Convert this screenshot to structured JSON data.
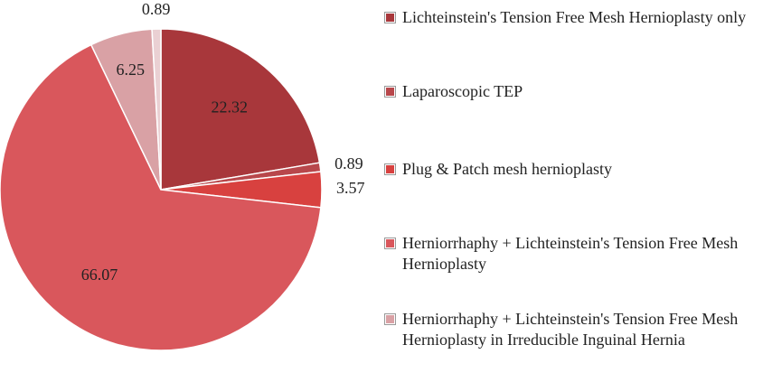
{
  "chart_data": {
    "type": "pie",
    "categories": [
      "Lichteinstein's Tension Free Mesh Hernioplasty only",
      "Laparoscopic TEP",
      "Plug & Patch mesh hernioplasty",
      "Herniorrhaphy + Lichteinstein's Tension Free Mesh Hernioplasty",
      "Herniorrhaphy + Lichteinstein's Tension Free Mesh Hernioplasty in Irreducible Inguinal Hernia",
      null
    ],
    "values": [
      22.32,
      0.89,
      3.57,
      66.07,
      6.25,
      0.89
    ],
    "colors": [
      "#a8373b",
      "#b8474b",
      "#d8413f",
      "#d9575c",
      "#d9a1a5",
      "#ead0d3"
    ]
  }
}
